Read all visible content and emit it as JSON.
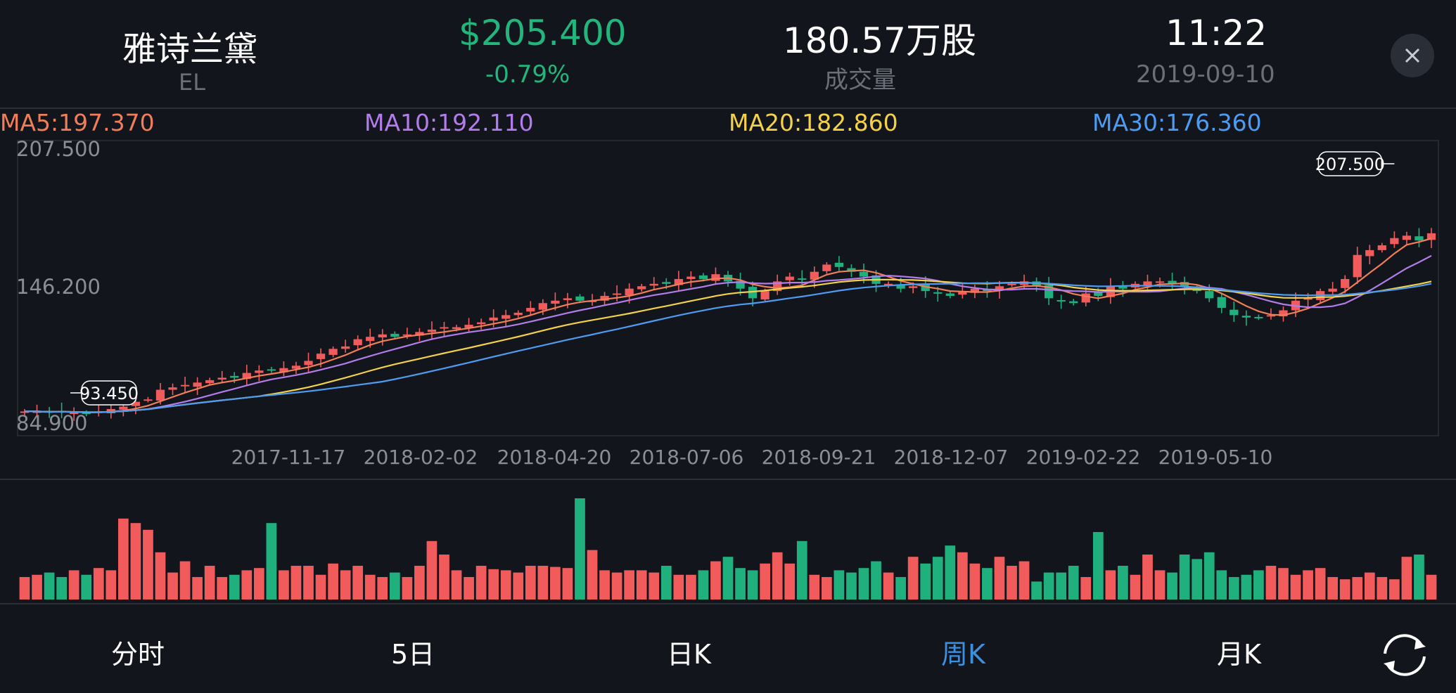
{
  "header": {
    "name": "雅诗兰黛",
    "code": "EL",
    "price": "$205.400",
    "change": "-0.79%",
    "volume": "180.57万股",
    "volume_label": "成交量",
    "time": "11:22",
    "date": "2019-09-10"
  },
  "ma": [
    {
      "label": "MA5:197.370",
      "color": "#f07e58"
    },
    {
      "label": "MA10:192.110",
      "color": "#b27dea"
    },
    {
      "label": "MA20:182.860",
      "color": "#f3d24a"
    },
    {
      "label": "MA30:176.360",
      "color": "#4e9cf2"
    }
  ],
  "colors": {
    "up": "#f15b5b",
    "down": "#1fb07e",
    "accent": "#3d8fe0"
  },
  "tabs": [
    {
      "label": "分时",
      "active": false
    },
    {
      "label": "5日",
      "active": false
    },
    {
      "label": "日K",
      "active": false
    },
    {
      "label": "周K",
      "active": true
    },
    {
      "label": "月K",
      "active": false
    }
  ],
  "icons": {
    "close": "close-icon",
    "refresh": "refresh-icon"
  },
  "chart_data": {
    "type": "candlestick",
    "y_tick_labels": [
      "207.500",
      "146.200",
      "84.900"
    ],
    "ylim": [
      84.9,
      207.5
    ],
    "x_tick_labels": [
      "2017-11-17",
      "2018-02-02",
      "2018-04-20",
      "2018-07-06",
      "2018-09-21",
      "2018-12-07",
      "2019-02-22",
      "2019-05-10"
    ],
    "max_label": "207.500",
    "min_label": "93.450",
    "weeks": 115,
    "closes": [
      95,
      95,
      94.5,
      95,
      94.5,
      94,
      95,
      96,
      97,
      99,
      100,
      104,
      105,
      106,
      107,
      108,
      109,
      109,
      111,
      112,
      112,
      113,
      114,
      116,
      119,
      121,
      122,
      125,
      126,
      127,
      126,
      127,
      128,
      129,
      130,
      130,
      131,
      132,
      134,
      135,
      136,
      138,
      140,
      141,
      142,
      141,
      141,
      143,
      144,
      146,
      147,
      148,
      148,
      150,
      151,
      150,
      152,
      149,
      146,
      142,
      145,
      149,
      151,
      150,
      153,
      156,
      155,
      153,
      151,
      148,
      148,
      146,
      147,
      145,
      144,
      143,
      145,
      146,
      145,
      147,
      148,
      149,
      147,
      142,
      141,
      140,
      144,
      143,
      147,
      146,
      148,
      149,
      149,
      148,
      147,
      145,
      142,
      138,
      135,
      134,
      134,
      135,
      137,
      141,
      142,
      145,
      146,
      150,
      160,
      162,
      164,
      167,
      168,
      166,
      169
    ],
    "volumes": [
      20,
      22,
      24,
      20,
      26,
      22,
      28,
      26,
      72,
      68,
      62,
      42,
      24,
      34,
      20,
      30,
      20,
      22,
      26,
      28,
      68,
      26,
      30,
      30,
      22,
      32,
      26,
      30,
      22,
      20,
      24,
      20,
      30,
      52,
      40,
      26,
      20,
      30,
      27,
      26,
      24,
      30,
      30,
      29,
      28,
      90,
      44,
      26,
      24,
      26,
      26,
      24,
      30,
      22,
      22,
      26,
      34,
      38,
      28,
      26,
      32,
      42,
      32,
      52,
      22,
      20,
      26,
      24,
      28,
      34,
      24,
      20,
      38,
      32,
      38,
      48,
      42,
      32,
      28,
      38,
      30,
      34,
      16,
      24,
      24,
      30,
      20,
      60,
      26,
      30,
      22,
      40,
      26,
      24,
      40,
      36,
      42,
      26,
      20,
      22,
      26,
      30,
      28,
      22,
      26,
      28,
      20,
      18,
      20,
      24,
      20,
      18,
      38,
      40,
      22
    ],
    "ma_lines": [
      {
        "name": "MA5",
        "color": "#f07e58",
        "end_value": 197.37
      },
      {
        "name": "MA10",
        "color": "#b27dea",
        "end_value": 192.11
      },
      {
        "name": "MA20",
        "color": "#f3d24a",
        "end_value": 182.86
      },
      {
        "name": "MA30",
        "color": "#4e9cf2",
        "end_value": 176.36
      }
    ]
  }
}
